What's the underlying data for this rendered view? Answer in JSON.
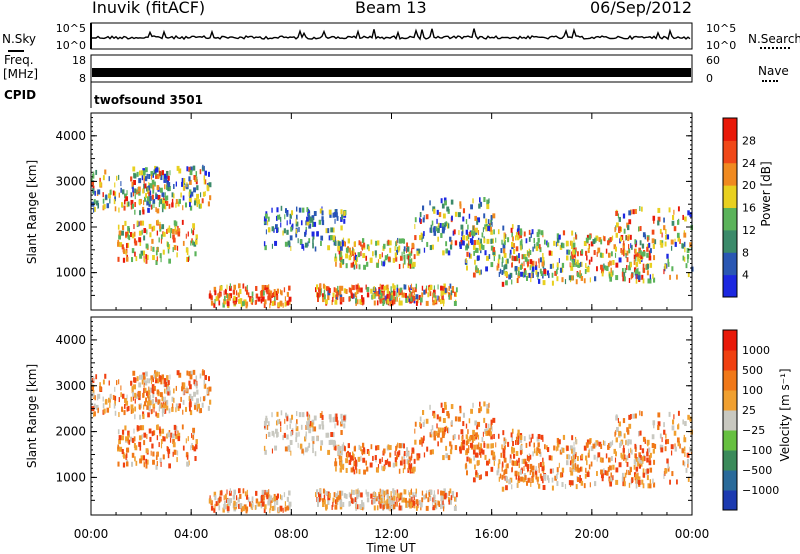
{
  "header": {
    "station": "Inuvik (fitACF)",
    "beam": "Beam 13",
    "date": "06/Sep/2012"
  },
  "left_labels": {
    "nsky": "N.Sky",
    "freq_line1": "Freq.",
    "freq_line2": "[MHz]",
    "cpid": "CPID"
  },
  "right_labels": {
    "nsearch": "N.Search",
    "nave": "Nave"
  },
  "cpid_text": "twofsound 3501",
  "chart_data": [
    {
      "type": "line",
      "panel": "noise",
      "ylabel_left": "N.Sky",
      "ylabel_right": "N.Search",
      "left_ticks": [
        "10^5",
        "10^0"
      ],
      "right_ticks": [
        "10^5",
        "10^0"
      ]
    },
    {
      "type": "line",
      "panel": "frequency",
      "ylabel_left": "Freq. [MHz]",
      "ylabel_right": "Nave",
      "left_ticks": [
        "18",
        "8"
      ],
      "right_ticks": [
        "60",
        "0"
      ]
    },
    {
      "type": "heatmap",
      "panel": "power",
      "ylabel": "Slant Range [km]",
      "y_ticks": [
        "1000",
        "2000",
        "3000",
        "4000"
      ],
      "ylim": [
        180,
        4500
      ],
      "colorbar_label": "Power [dB]",
      "colorbar_ticks": [
        "4",
        "8",
        "12",
        "16",
        "20",
        "24",
        "28"
      ],
      "colorbar_colors": [
        "#1c28e0",
        "#2a57b3",
        "#3b8a6a",
        "#5bb35a",
        "#e8d020",
        "#f08a20",
        "#f04818",
        "#e81808"
      ]
    },
    {
      "type": "heatmap",
      "panel": "velocity",
      "ylabel": "Slant Range [km]",
      "y_ticks": [
        "1000",
        "2000",
        "3000",
        "4000"
      ],
      "ylim": [
        180,
        4500
      ],
      "colorbar_label": "Velocity [m s⁻¹]",
      "colorbar_ticks": [
        "1000",
        "500",
        "100",
        "25",
        "−25",
        "−100",
        "−500",
        "−1000"
      ],
      "colorbar_colors": [
        "#1c3ab0",
        "#2a6a9a",
        "#3a8a5a",
        "#66c040",
        "#c8c8c0",
        "#f0a030",
        "#f07818",
        "#f04010",
        "#e81808"
      ]
    }
  ],
  "x_axis": {
    "label": "Time UT",
    "ticks": [
      "00:00",
      "04:00",
      "08:00",
      "12:00",
      "16:00",
      "20:00",
      "00:00"
    ]
  }
}
